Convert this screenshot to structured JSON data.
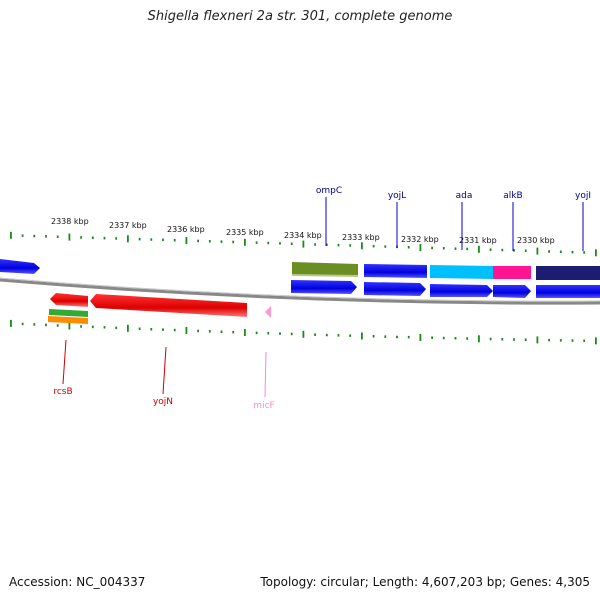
{
  "title": "Shigella flexneri 2a str. 301, complete genome",
  "footer": {
    "accession": "Accession: NC_004337",
    "topology": "Topology: circular; Length: 4,607,203 bp; Genes: 4,305"
  },
  "ruler_labels": [
    "2338 kbp",
    "2337 kbp",
    "2336 kbp",
    "2335 kbp",
    "2334 kbp",
    "2333 kbp",
    "2332 kbp",
    "2331 kbp",
    "2330 kbp"
  ],
  "genes_top": [
    {
      "label": "ompC",
      "color": "#00008b"
    },
    {
      "label": "yojL",
      "color": "#00008b"
    },
    {
      "label": "ada",
      "color": "#00008b"
    },
    {
      "label": "alkB",
      "color": "#00008b"
    },
    {
      "label": "yojI",
      "color": "#00008b"
    }
  ],
  "genes_bottom": [
    {
      "label": "rcsB",
      "color": "#cc0000"
    },
    {
      "label": "yojN",
      "color": "#cc0000"
    },
    {
      "label": "micF",
      "color": "#ff88cc"
    }
  ],
  "colors": {
    "forward_gene": "#0000ee",
    "reverse_gene": "#ee0000",
    "olive_feature": "#6b8e23",
    "cyan_feature": "#00bfff",
    "magenta_feature": "#ff1493",
    "navy_feature": "#1c1c70",
    "backbone": "#888888",
    "ticks": "#1a8a1a",
    "ncRNA": "#ff99cc"
  }
}
